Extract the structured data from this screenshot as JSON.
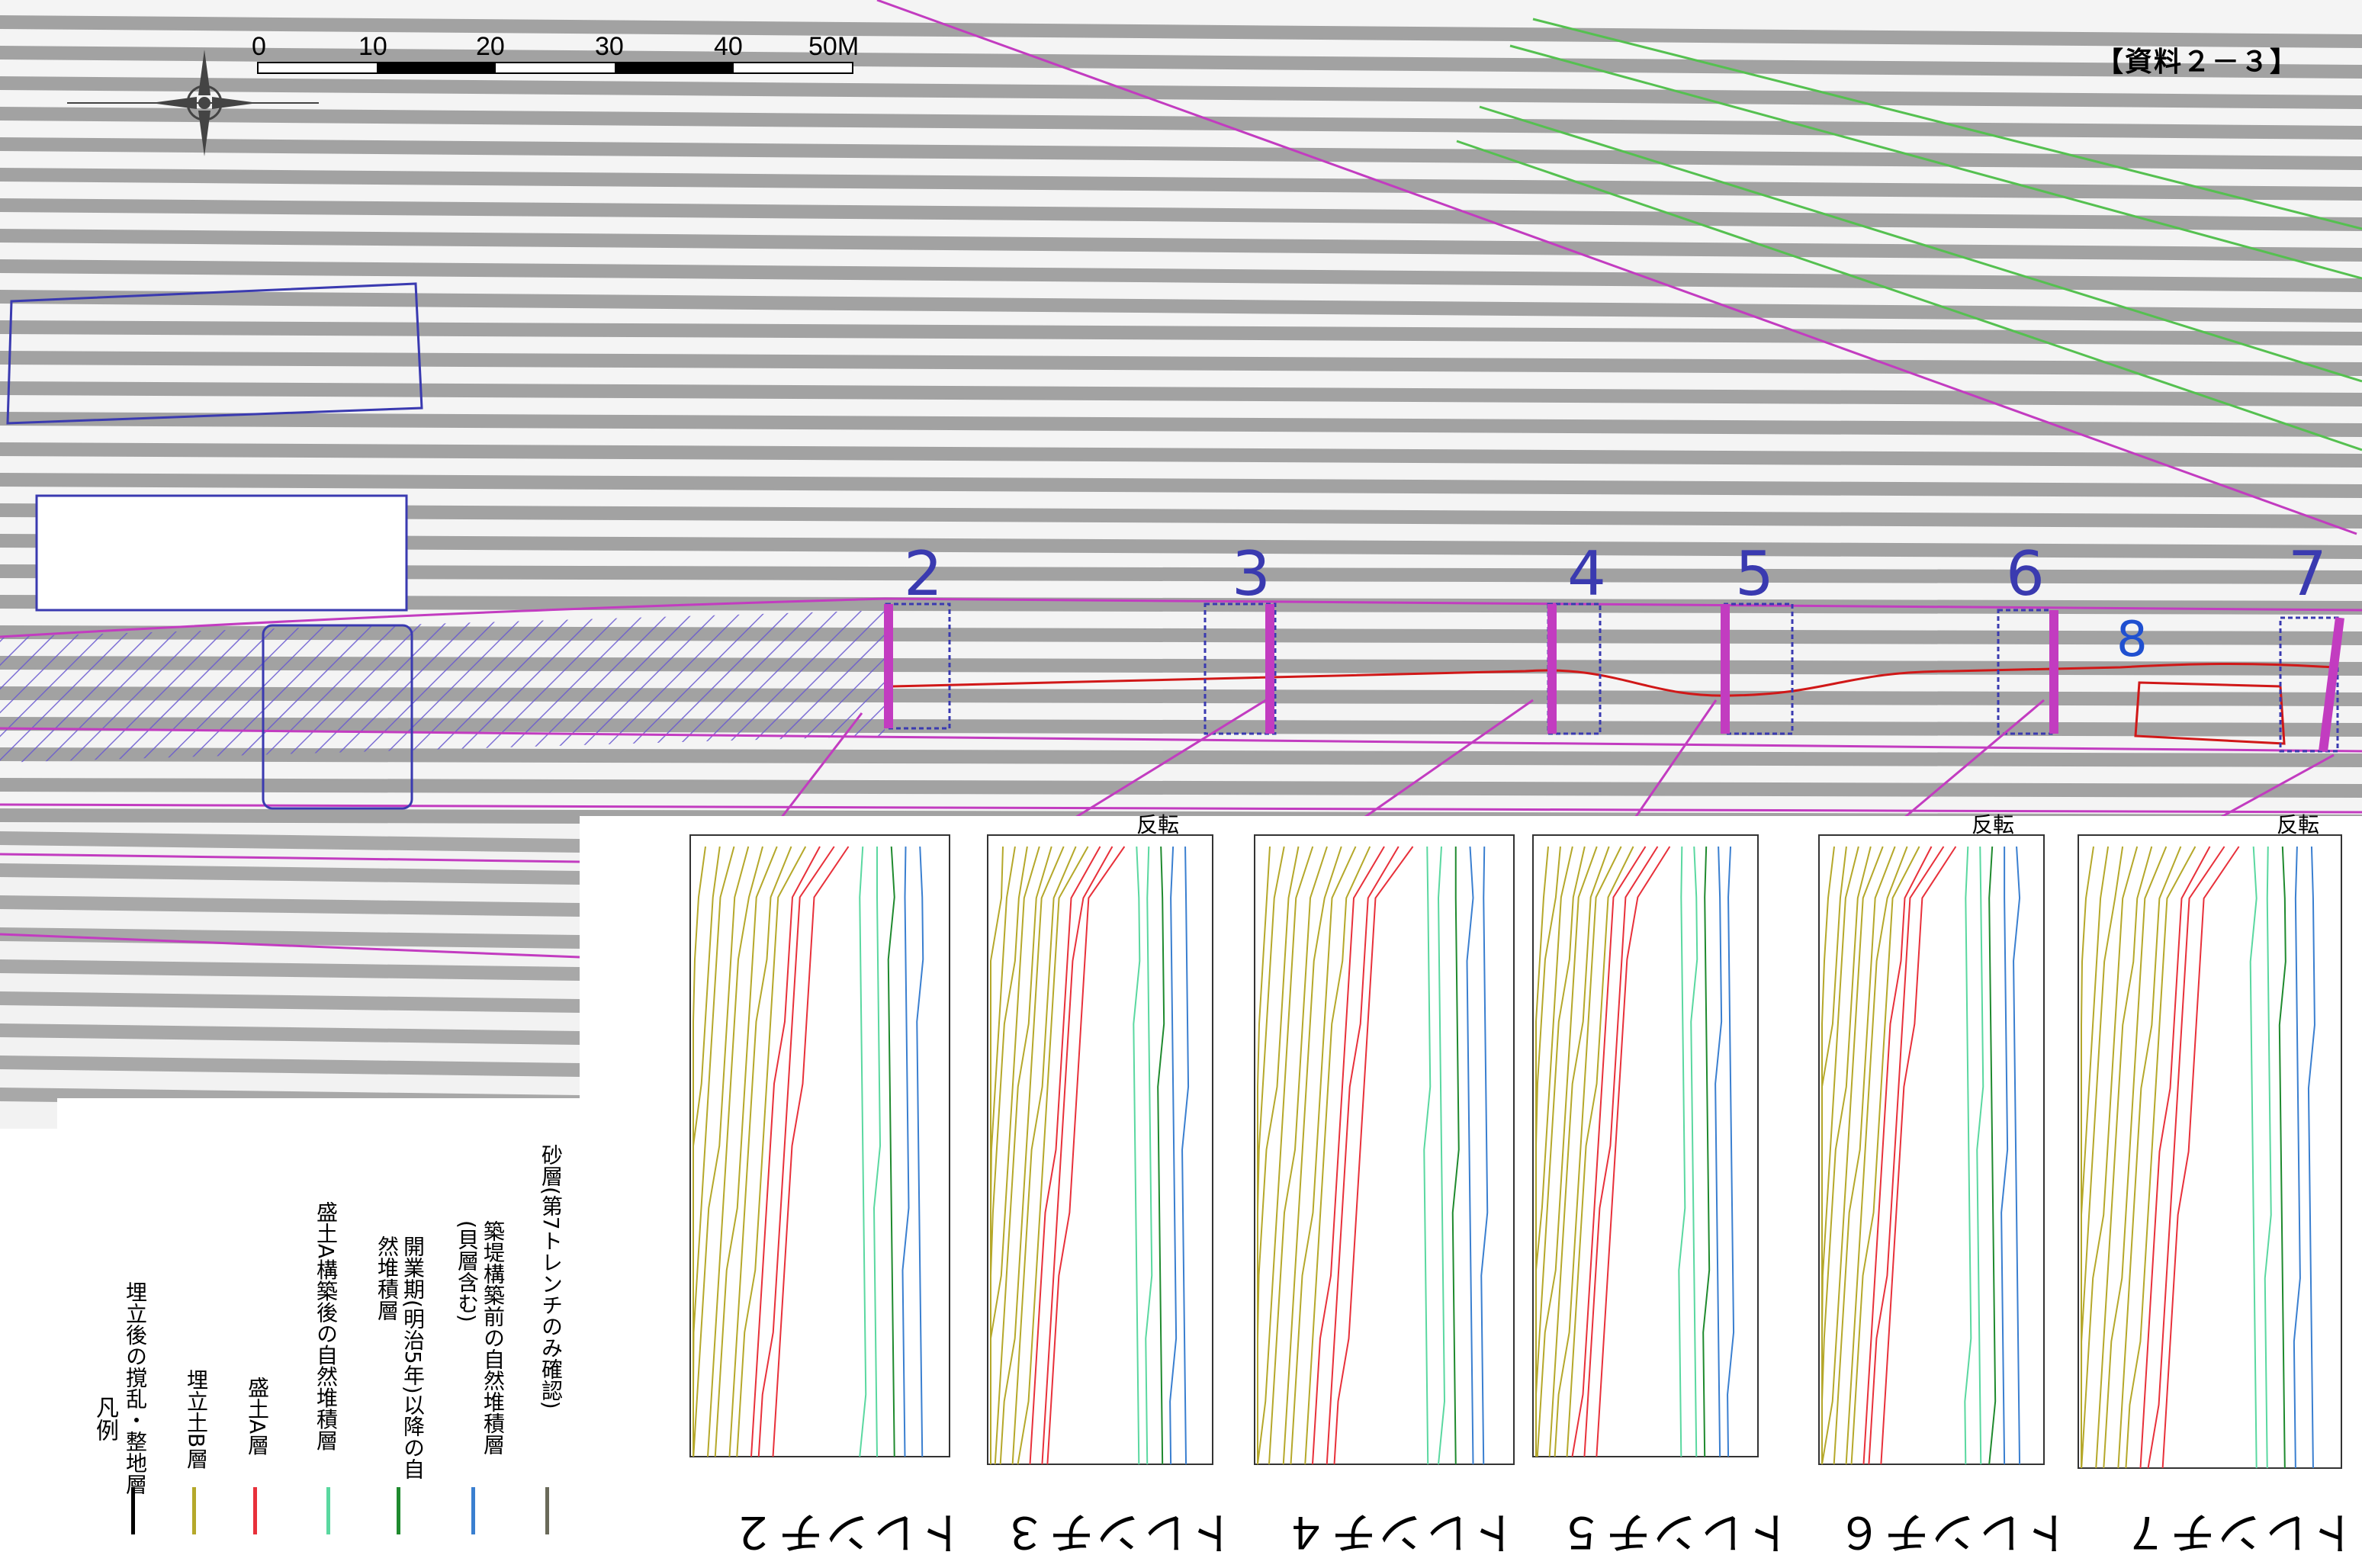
{
  "document_tag": "【資料２－３】",
  "scale_bar": {
    "labels": [
      "0",
      "10",
      "20",
      "30",
      "40",
      "50M"
    ],
    "unit": "M"
  },
  "trench_numbers": [
    "2",
    "3",
    "4",
    "5",
    "6",
    "7",
    "8"
  ],
  "sections": [
    {
      "label": "トレンチ２",
      "flipped": false
    },
    {
      "label": "トレンチ３",
      "flipped": true
    },
    {
      "label": "トレンチ４",
      "flipped": false
    },
    {
      "label": "トレンチ５",
      "flipped": false
    },
    {
      "label": "トレンチ６",
      "flipped": true
    },
    {
      "label": "トレンチ７",
      "flipped": true
    }
  ],
  "flip_label": "反転",
  "legend": {
    "title": "凡例",
    "items": [
      {
        "label": "埋立後の撹乱・整地層",
        "color": "#000000"
      },
      {
        "label": "埋立土B層",
        "color": "#b5a82a"
      },
      {
        "label": "盛土A層",
        "color": "#e8303a"
      },
      {
        "label": "盛土A構築後の自然堆積層",
        "color": "#5ad8a0"
      },
      {
        "label": "開業期(明治5年)以降の自然堆積層",
        "color": "#1f8a2e"
      },
      {
        "label": "築堤構築前の自然堆積層(貝層含む)",
        "color": "#3a7fd0"
      },
      {
        "label": "砂層(第7トレンチのみ確認)",
        "color": "#6a6a5a"
      }
    ]
  },
  "colors": {
    "boundary": "#c23cc0",
    "trench_outline": "#3a3ab0",
    "centerline": "#d01818",
    "rail": "#55c050",
    "photo_stripe": "#9a9a9a"
  }
}
